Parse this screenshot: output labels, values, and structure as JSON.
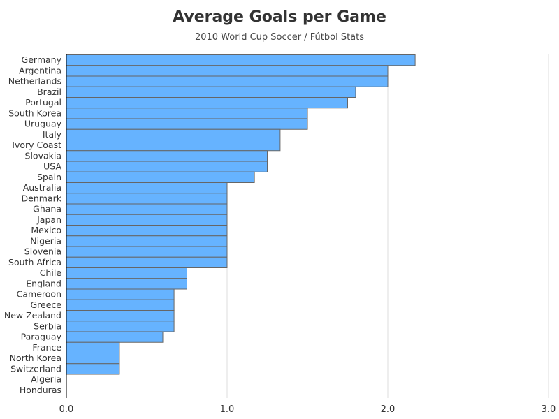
{
  "chart_data": {
    "type": "bar",
    "orientation": "horizontal",
    "title": "Average Goals per Game",
    "subtitle": "2010 World Cup Soccer / Fútbol Stats",
    "xlabel": "",
    "ylabel": "",
    "xlim": [
      0,
      3
    ],
    "xticks": [
      "0.0",
      "1.0",
      "2.0",
      "3.0"
    ],
    "grid": true,
    "bar_color": "#66b3ff",
    "bar_edge_color": "#666666",
    "categories": [
      "Germany",
      "Argentina",
      "Netherlands",
      "Brazil",
      "Portugal",
      "South Korea",
      "Uruguay",
      "Italy",
      "Ivory Coast",
      "Slovakia",
      "USA",
      "Spain",
      "Australia",
      "Denmark",
      "Ghana",
      "Japan",
      "Mexico",
      "Nigeria",
      "Slovenia",
      "South Africa",
      "Chile",
      "England",
      "Cameroon",
      "Greece",
      "New Zealand",
      "Serbia",
      "Paraguay",
      "France",
      "North Korea",
      "Switzerland",
      "Algeria",
      "Honduras"
    ],
    "values": [
      2.17,
      2.0,
      2.0,
      1.8,
      1.75,
      1.5,
      1.5,
      1.33,
      1.33,
      1.25,
      1.25,
      1.17,
      1.0,
      1.0,
      1.0,
      1.0,
      1.0,
      1.0,
      1.0,
      1.0,
      0.75,
      0.75,
      0.67,
      0.67,
      0.67,
      0.67,
      0.6,
      0.33,
      0.33,
      0.33,
      0.0,
      0.0
    ]
  }
}
